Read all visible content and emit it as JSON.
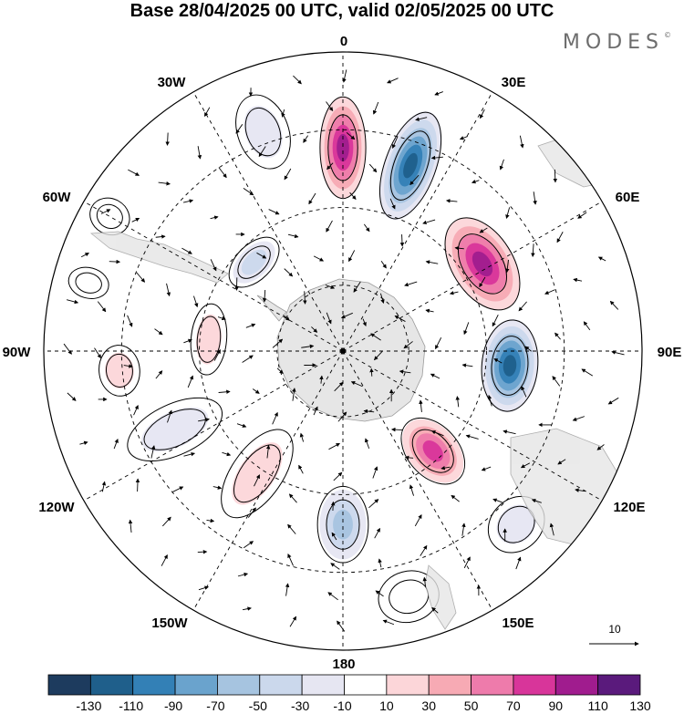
{
  "title": "Base 28/04/2025 00 UTC, valid 02/05/2025 00 UTC",
  "brand": "MODES",
  "brand_mark": "©",
  "map": {
    "projection": "south polar stereographic",
    "longitude_labels": [
      "0",
      "30E",
      "60E",
      "90E",
      "120E",
      "150E",
      "180",
      "150W",
      "120W",
      "90W",
      "60W",
      "30W"
    ],
    "vector_scale_label": "10"
  },
  "colorbar": {
    "labels": [
      "-130",
      "-110",
      "-90",
      "-70",
      "-50",
      "-30",
      "-10",
      "10",
      "30",
      "50",
      "70",
      "90",
      "110",
      "130"
    ],
    "colors": [
      "#1d3b5e",
      "#1f5f8b",
      "#3380b6",
      "#6aa3cd",
      "#a6c4e0",
      "#cbd8ec",
      "#e6e6f2",
      "#ffffff",
      "#fcd6d9",
      "#f7aab4",
      "#ee7bab",
      "#d8359a",
      "#a01c8e",
      "#5a1a7c"
    ]
  },
  "anomalies": [
    {
      "lon": 0,
      "r": 0.68,
      "rx": 0.09,
      "ry": 0.2,
      "value": 115
    },
    {
      "lon": 20,
      "r": 0.66,
      "rx": 0.1,
      "ry": 0.22,
      "value": -135
    },
    {
      "lon": 58,
      "r": 0.55,
      "rx": 0.2,
      "ry": 0.12,
      "value": 120
    },
    {
      "lon": 95,
      "r": 0.56,
      "rx": 0.18,
      "ry": 0.11,
      "value": -135
    },
    {
      "lon": 138,
      "r": 0.45,
      "rx": 0.1,
      "ry": 0.15,
      "value": 105
    },
    {
      "lon": 180,
      "r": 0.58,
      "rx": 0.1,
      "ry": 0.15,
      "value": -85
    },
    {
      "lon": -145,
      "r": 0.5,
      "rx": 0.1,
      "ry": 0.2,
      "value": 40
    },
    {
      "lon": -115,
      "r": 0.62,
      "rx": 0.1,
      "ry": 0.2,
      "value": -30
    },
    {
      "lon": -95,
      "r": 0.75,
      "rx": 0.1,
      "ry": 0.08,
      "value": 45
    },
    {
      "lon": -85,
      "r": 0.45,
      "rx": 0.14,
      "ry": 0.07,
      "value": 45
    },
    {
      "lon": -45,
      "r": 0.42,
      "rx": 0.12,
      "ry": 0.07,
      "value": -55
    },
    {
      "lon": -20,
      "r": 0.78,
      "rx": 0.1,
      "ry": 0.15,
      "value": -45
    },
    {
      "lon": -60,
      "r": 0.9,
      "rx": 0.07,
      "ry": 0.08,
      "value": 20
    },
    {
      "lon": 135,
      "r": 0.82,
      "rx": 0.12,
      "ry": 0.1,
      "value": -35
    },
    {
      "lon": 165,
      "r": 0.85,
      "rx": 0.12,
      "ry": 0.1,
      "value": 25
    },
    {
      "lon": -75,
      "r": 0.88,
      "rx": 0.06,
      "ry": 0.08,
      "value": -25
    }
  ]
}
